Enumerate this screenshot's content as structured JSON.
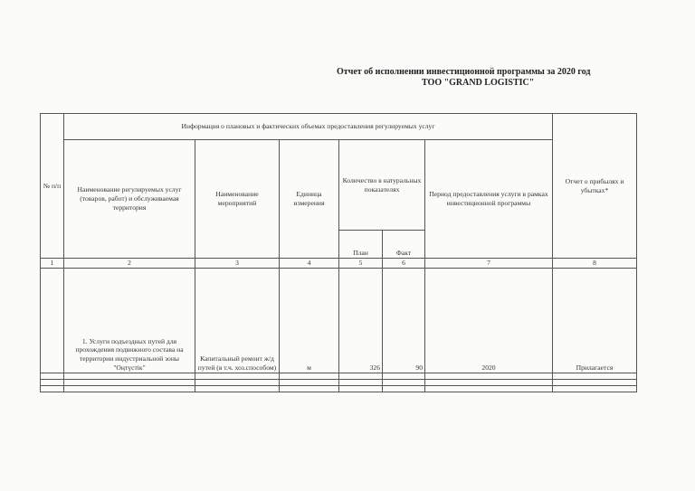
{
  "title_line1": "Отчет об исполнении инвестиционной программы за 2020 год",
  "title_line2": "ТОО \"GRAND LOGISTIC\"",
  "table": {
    "group_header": "Информация о плановых и фактических объемах предоставления регулируемых услуг",
    "col_no": "№ п/п",
    "col_service": "Наименование регулируемых услуг (товаров, работ) и обслуживаемая территория",
    "col_measures": "Наименование мероприятий",
    "col_unit": "Единица измерения",
    "col_quantity": "Количество в натуральных показателях",
    "col_plan": "План",
    "col_fact": "Факт",
    "col_period": "Период предоставления услуги в рамках инвестиционной программы",
    "col_report": "Отчет о прибылях и убытках*",
    "col_numbers": [
      "1",
      "2",
      "3",
      "4",
      "5",
      "6",
      "7",
      "8"
    ],
    "rows": [
      {
        "no": "",
        "service": "1. Услуги подъездных путей для прохождения подвижного состава на территории индустриальной зоны \"Оңтүстік\"",
        "measures": "Капитальный ремонт ж/д путей (в т.ч. хоз.способом)",
        "unit": "м",
        "plan": "326",
        "fact": "90",
        "period": "2020",
        "report": "Прилагается"
      }
    ]
  }
}
